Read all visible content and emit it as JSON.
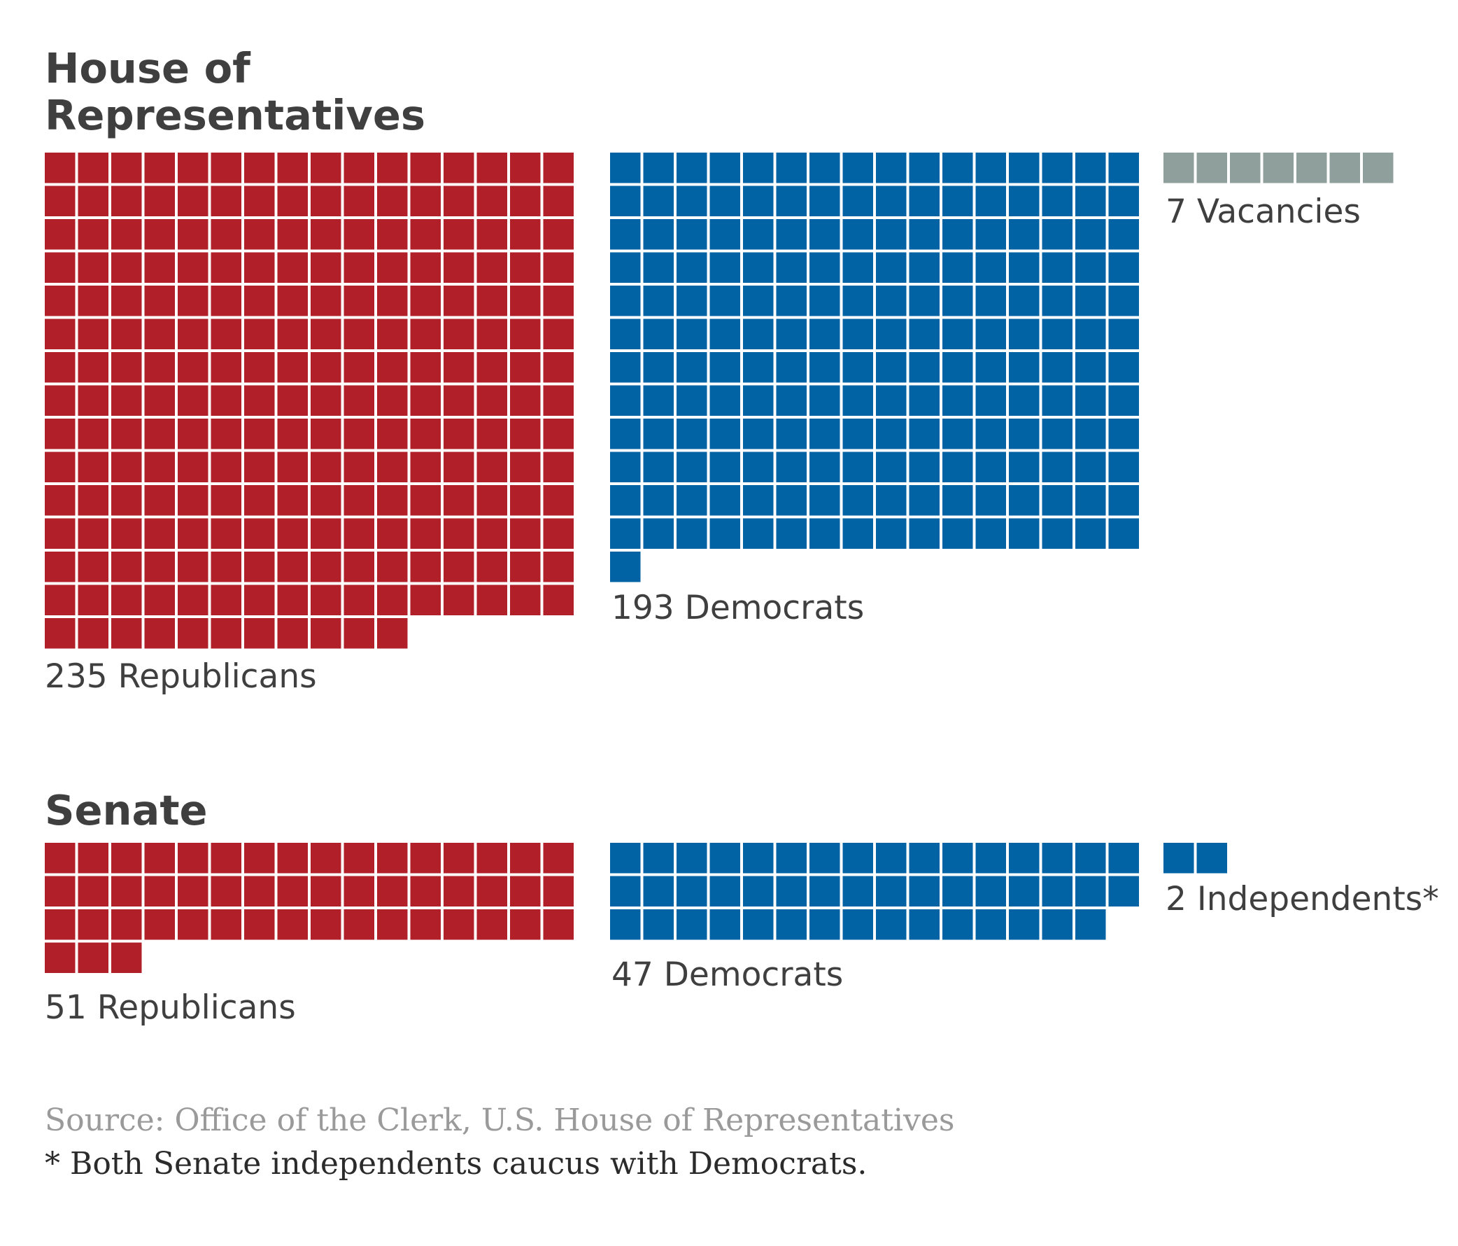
{
  "colors": {
    "republican": "#b12028",
    "democrat": "#0263a4",
    "vacancy": "#8f9f9b",
    "independent": "#0263a4"
  },
  "chart_data": [
    {
      "type": "waffle",
      "title_lines": [
        "House of",
        "Representatives"
      ],
      "series": [
        {
          "key": "republican",
          "value": 235,
          "label": "235 Republicans",
          "columns": 16
        },
        {
          "key": "democrat",
          "value": 193,
          "label": "193 Democrats",
          "columns": 16
        },
        {
          "key": "vacancy",
          "value": 7,
          "label": "7 Vacancies",
          "columns": 7
        }
      ]
    },
    {
      "type": "waffle",
      "title_lines": [
        "Senate"
      ],
      "series": [
        {
          "key": "republican",
          "value": 51,
          "label": "51 Republicans",
          "columns": 16
        },
        {
          "key": "democrat",
          "value": 47,
          "label": "47 Democrats",
          "columns": 16
        },
        {
          "key": "independent",
          "value": 2,
          "label": "2 Independents*",
          "columns": 2
        }
      ]
    }
  ],
  "footer": {
    "source": "Source: Office of the Clerk, U.S. House of Representatives",
    "note": "* Both Senate independents caucus with Democrats."
  }
}
